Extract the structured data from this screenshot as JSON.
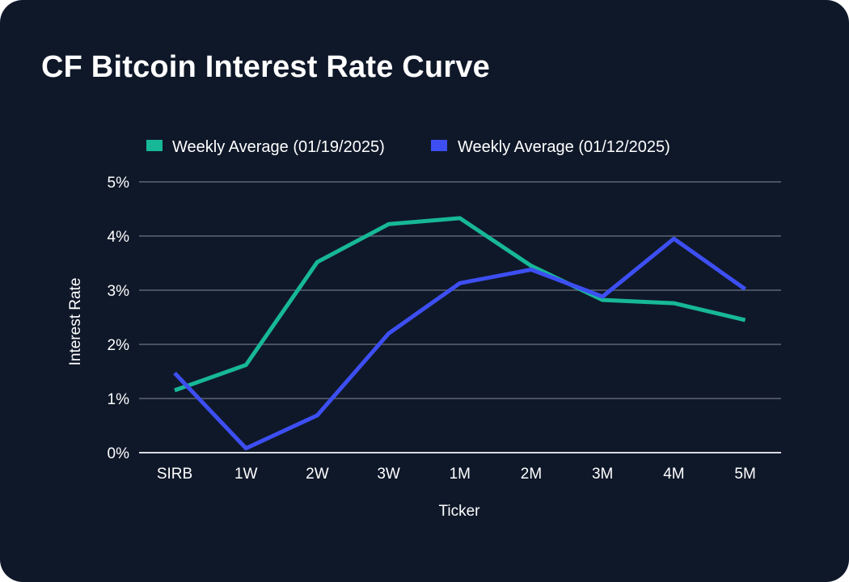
{
  "colors": {
    "background": "#0f1829",
    "grid": "#4a5160",
    "text": "#ffffff",
    "series_1": "#17b897",
    "series_2": "#3d4ff2"
  },
  "chart_data": {
    "type": "line",
    "title": "CF Bitcoin Interest Rate Curve",
    "xlabel": "Ticker",
    "ylabel": "Interest Rate",
    "categories": [
      "SIRB",
      "1W",
      "2W",
      "3W",
      "1M",
      "2M",
      "3M",
      "4M",
      "5M"
    ],
    "ylim": [
      0,
      5
    ],
    "yticks": [
      0,
      1,
      2,
      3,
      4,
      5
    ],
    "ytick_labels": [
      "0%",
      "1%",
      "2%",
      "3%",
      "4%",
      "5%"
    ],
    "grid": true,
    "legend_position": "top",
    "series": [
      {
        "name": "Weekly Average (01/19/2025)",
        "color": "#17b897",
        "values": [
          1.15,
          1.62,
          3.52,
          4.22,
          4.33,
          3.45,
          2.82,
          2.76,
          2.45
        ]
      },
      {
        "name": "Weekly Average (01/12/2025)",
        "color": "#3d4ff2",
        "values": [
          1.47,
          0.08,
          0.69,
          2.2,
          3.13,
          3.38,
          2.88,
          3.95,
          3.02
        ]
      }
    ]
  }
}
